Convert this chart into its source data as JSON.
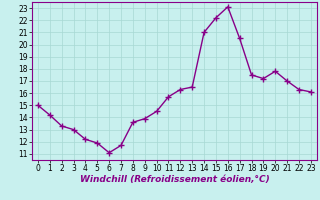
{
  "x": [
    0,
    1,
    2,
    3,
    4,
    5,
    6,
    7,
    8,
    9,
    10,
    11,
    12,
    13,
    14,
    15,
    16,
    17,
    18,
    19,
    20,
    21,
    22,
    23
  ],
  "y": [
    15.0,
    14.2,
    13.3,
    13.0,
    12.2,
    11.9,
    11.1,
    11.7,
    13.6,
    13.9,
    14.5,
    15.7,
    16.3,
    16.5,
    21.0,
    22.2,
    23.1,
    20.5,
    17.5,
    17.2,
    17.8,
    17.0,
    16.3,
    16.1
  ],
  "line_color": "#880088",
  "marker": "+",
  "marker_size": 4,
  "marker_lw": 1.0,
  "bg_color": "#c8f0ee",
  "grid_color": "#a8d8d4",
  "xlabel": "Windchill (Refroidissement éolien,°C)",
  "xlabel_fontsize": 6.5,
  "ylim": [
    10.5,
    23.5
  ],
  "xlim": [
    -0.5,
    23.5
  ],
  "yticks": [
    11,
    12,
    13,
    14,
    15,
    16,
    17,
    18,
    19,
    20,
    21,
    22,
    23
  ],
  "xticks": [
    0,
    1,
    2,
    3,
    4,
    5,
    6,
    7,
    8,
    9,
    10,
    11,
    12,
    13,
    14,
    15,
    16,
    17,
    18,
    19,
    20,
    21,
    22,
    23
  ],
  "tick_fontsize": 5.5,
  "line_width": 1.0,
  "spine_color": "#880088",
  "xlabel_color": "#880088"
}
